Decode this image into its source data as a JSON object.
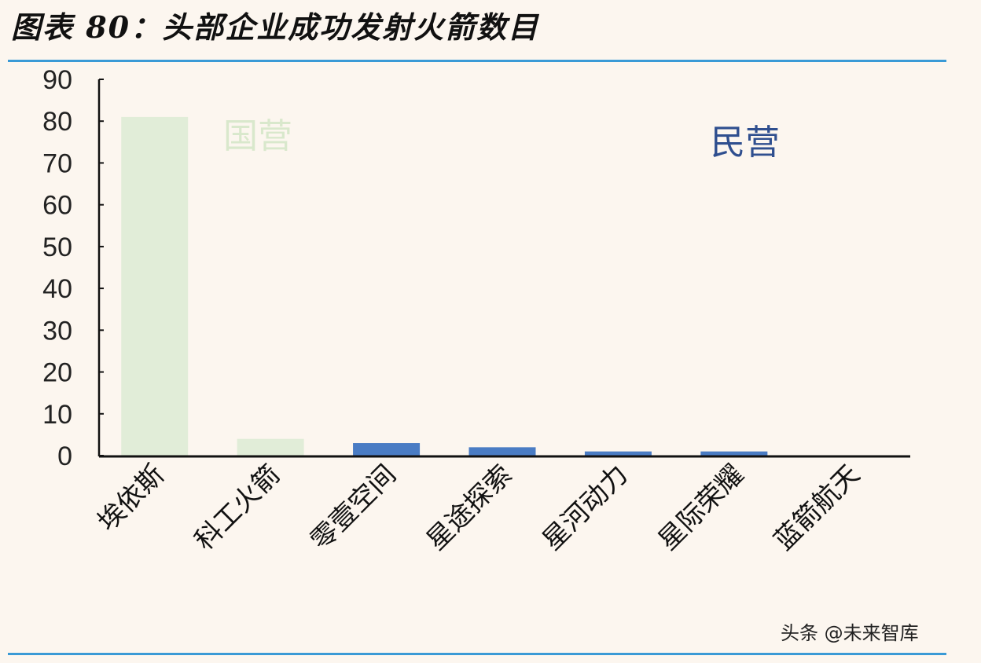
{
  "chart_data": {
    "type": "bar",
    "title": "图表 80：头部企业成功发射火箭数目",
    "categories": [
      "埃依斯",
      "科工火箭",
      "零壹空间",
      "星途探索",
      "星河动力",
      "星际荣耀",
      "蓝箭航天"
    ],
    "values": [
      81,
      4,
      3,
      2,
      1,
      1,
      0
    ],
    "groups": [
      "国营",
      "国营",
      "民营",
      "民营",
      "民营",
      "民营",
      "民营"
    ],
    "annotations": [
      {
        "text": "国营",
        "color": "#d9e8cc"
      },
      {
        "text": "民营",
        "color": "#2f4f8f"
      }
    ],
    "colors": {
      "国营": "#e1edd8",
      "民营": "#4a7cc4"
    },
    "xlabel": "",
    "ylabel": "",
    "ylim": [
      0,
      90
    ],
    "yticks": [
      0,
      10,
      20,
      30,
      40,
      50,
      60,
      70,
      80,
      90
    ],
    "grid": false
  },
  "watermark": "头条 @未来智库",
  "accent_color": "#3a9ad6"
}
